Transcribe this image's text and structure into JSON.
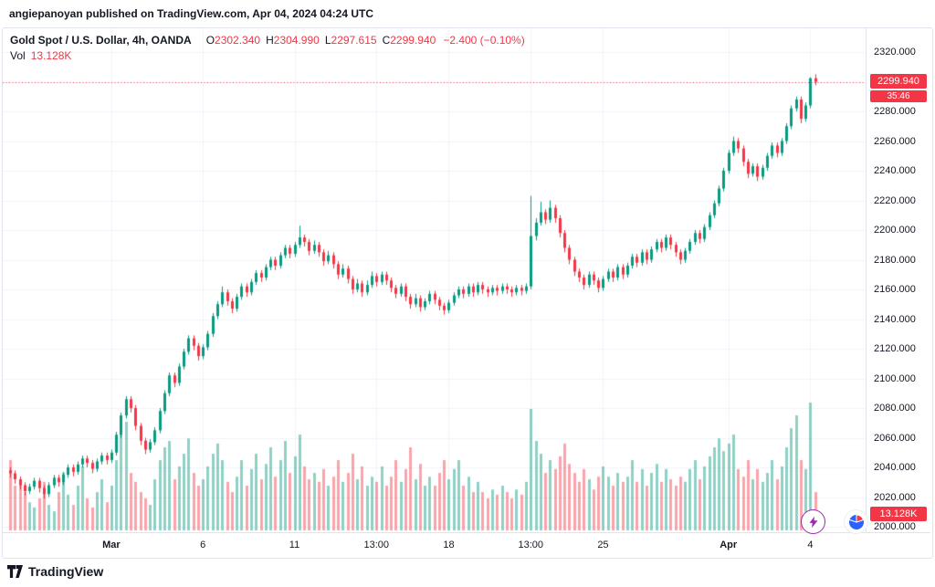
{
  "header": {
    "attribution": "angiepanoyan published on TradingView.com, Apr 04, 2024 04:24 UTC"
  },
  "legend": {
    "symbol": "Gold Spot / U.S. Dollar, 4h, OANDA",
    "ohlc": [
      {
        "label": "O",
        "value": "2302.340"
      },
      {
        "label": "H",
        "value": "2304.990"
      },
      {
        "label": "L",
        "value": "2297.615"
      },
      {
        "label": "C",
        "value": "2299.940"
      }
    ],
    "change": "−2.400 (−0.10%)",
    "vol_label": "Vol",
    "vol_value": "13.128K"
  },
  "badges": {
    "price": "2299.940",
    "countdown": "35:46",
    "volume": "13.128K"
  },
  "price_scale": {
    "labels": [
      "2320.000",
      "2300.000",
      "2280.000",
      "2260.000",
      "2240.000",
      "2220.000",
      "2200.000",
      "2180.000",
      "2160.000",
      "2140.000",
      "2120.000",
      "2100.000",
      "2080.000",
      "2060.000",
      "2040.000",
      "2020.000",
      "2000.000"
    ]
  },
  "footer": {
    "brand": "TradingView"
  },
  "colors": {
    "up": "#089981",
    "down": "#f23645",
    "vol_up": "rgba(8,153,129,0.45)",
    "vol_down": "rgba(242,54,69,0.45)",
    "grid": "#f0f3fa",
    "axis_text": "#131722",
    "accent_purple": "#9c27b0",
    "accent_blue": "#2962ff"
  },
  "chart_data": {
    "type": "candlestick",
    "title": "Gold Spot / U.S. Dollar",
    "interval": "4h",
    "exchange": "OANDA",
    "current": {
      "open": 2302.34,
      "high": 2304.99,
      "low": 2297.615,
      "close": 2299.94,
      "change": -2.4,
      "change_pct": -0.1,
      "volume_label": "13.128K",
      "countdown": "35:46"
    },
    "price_line": 2299.94,
    "ylim": [
      2000,
      2320
    ],
    "y_tick_step": 20,
    "x_ticks": [
      {
        "label": "Mar",
        "idx": 21,
        "bold": true
      },
      {
        "label": "6",
        "idx": 40,
        "bold": false
      },
      {
        "label": "11",
        "idx": 59,
        "bold": false
      },
      {
        "label": "13:00",
        "idx": 76,
        "bold": false
      },
      {
        "label": "18",
        "idx": 91,
        "bold": false
      },
      {
        "label": "13:00",
        "idx": 108,
        "bold": false
      },
      {
        "label": "25",
        "idx": 123,
        "bold": false
      },
      {
        "label": "Apr",
        "idx": 149,
        "bold": true
      },
      {
        "label": "4",
        "idx": 166,
        "bold": false
      }
    ],
    "columns": [
      "open",
      "high",
      "low",
      "close",
      "volume_rel"
    ],
    "candles": [
      [
        2038,
        2040,
        2033,
        2036,
        55
      ],
      [
        2036,
        2038,
        2029,
        2032,
        35
      ],
      [
        2032,
        2034,
        2025,
        2028,
        40
      ],
      [
        2028,
        2030,
        2021,
        2024,
        30
      ],
      [
        2024,
        2029,
        2022,
        2027,
        22
      ],
      [
        2027,
        2033,
        2025,
        2031,
        18
      ],
      [
        2031,
        2033,
        2023,
        2026,
        25
      ],
      [
        2026,
        2028,
        2019,
        2022,
        38
      ],
      [
        2022,
        2030,
        2020,
        2028,
        20
      ],
      [
        2028,
        2035,
        2026,
        2033,
        15
      ],
      [
        2033,
        2035,
        2027,
        2030,
        30
      ],
      [
        2030,
        2037,
        2028,
        2035,
        45
      ],
      [
        2035,
        2042,
        2033,
        2040,
        28
      ],
      [
        2040,
        2042,
        2034,
        2037,
        20
      ],
      [
        2037,
        2044,
        2035,
        2042,
        35
      ],
      [
        2042,
        2048,
        2040,
        2046,
        50
      ],
      [
        2046,
        2048,
        2040,
        2043,
        25
      ],
      [
        2043,
        2045,
        2036,
        2039,
        18
      ],
      [
        2039,
        2046,
        2037,
        2044,
        30
      ],
      [
        2044,
        2050,
        2042,
        2048,
        40
      ],
      [
        2048,
        2050,
        2042,
        2045,
        22
      ],
      [
        2045,
        2052,
        2043,
        2050,
        35
      ],
      [
        2050,
        2064,
        2048,
        2062,
        55
      ],
      [
        2062,
        2077,
        2060,
        2075,
        75
      ],
      [
        2075,
        2088,
        2073,
        2086,
        85
      ],
      [
        2086,
        2088,
        2077,
        2080,
        45
      ],
      [
        2080,
        2082,
        2065,
        2068,
        38
      ],
      [
        2068,
        2070,
        2055,
        2058,
        30
      ],
      [
        2058,
        2060,
        2049,
        2052,
        25
      ],
      [
        2052,
        2059,
        2050,
        2057,
        20
      ],
      [
        2057,
        2067,
        2055,
        2065,
        40
      ],
      [
        2065,
        2080,
        2063,
        2078,
        55
      ],
      [
        2078,
        2092,
        2076,
        2090,
        65
      ],
      [
        2090,
        2104,
        2088,
        2102,
        70
      ],
      [
        2102,
        2104,
        2094,
        2097,
        40
      ],
      [
        2097,
        2110,
        2095,
        2108,
        50
      ],
      [
        2108,
        2120,
        2106,
        2118,
        60
      ],
      [
        2118,
        2129,
        2116,
        2127,
        72
      ],
      [
        2127,
        2129,
        2119,
        2122,
        45
      ],
      [
        2122,
        2124,
        2112,
        2115,
        35
      ],
      [
        2115,
        2123,
        2113,
        2121,
        40
      ],
      [
        2121,
        2132,
        2119,
        2130,
        50
      ],
      [
        2130,
        2144,
        2128,
        2142,
        60
      ],
      [
        2142,
        2152,
        2140,
        2150,
        68
      ],
      [
        2150,
        2162,
        2148,
        2158,
        55
      ],
      [
        2158,
        2160,
        2149,
        2152,
        38
      ],
      [
        2152,
        2154,
        2144,
        2147,
        30
      ],
      [
        2147,
        2157,
        2145,
        2155,
        42
      ],
      [
        2155,
        2164,
        2153,
        2162,
        55
      ],
      [
        2162,
        2164,
        2155,
        2158,
        35
      ],
      [
        2158,
        2167,
        2156,
        2165,
        48
      ],
      [
        2165,
        2173,
        2163,
        2171,
        60
      ],
      [
        2171,
        2173,
        2165,
        2168,
        40
      ],
      [
        2168,
        2177,
        2166,
        2175,
        52
      ],
      [
        2175,
        2182,
        2173,
        2180,
        65
      ],
      [
        2180,
        2182,
        2173,
        2176,
        42
      ],
      [
        2176,
        2185,
        2174,
        2183,
        55
      ],
      [
        2183,
        2190,
        2181,
        2188,
        70
      ],
      [
        2188,
        2190,
        2181,
        2184,
        45
      ],
      [
        2184,
        2192,
        2182,
        2190,
        58
      ],
      [
        2190,
        2203,
        2188,
        2195,
        75
      ],
      [
        2195,
        2197,
        2189,
        2192,
        50
      ],
      [
        2192,
        2194,
        2183,
        2186,
        40
      ],
      [
        2186,
        2193,
        2184,
        2190,
        45
      ],
      [
        2190,
        2192,
        2182,
        2185,
        38
      ],
      [
        2185,
        2187,
        2176,
        2179,
        48
      ],
      [
        2179,
        2186,
        2177,
        2183,
        35
      ],
      [
        2183,
        2185,
        2174,
        2177,
        42
      ],
      [
        2177,
        2179,
        2167,
        2170,
        55
      ],
      [
        2170,
        2177,
        2168,
        2174,
        38
      ],
      [
        2174,
        2176,
        2164,
        2167,
        45
      ],
      [
        2167,
        2169,
        2157,
        2160,
        60
      ],
      [
        2160,
        2167,
        2158,
        2164,
        40
      ],
      [
        2164,
        2166,
        2155,
        2158,
        50
      ],
      [
        2158,
        2166,
        2156,
        2163,
        35
      ],
      [
        2163,
        2172,
        2161,
        2169,
        42
      ],
      [
        2169,
        2171,
        2162,
        2165,
        38
      ],
      [
        2165,
        2172,
        2163,
        2170,
        50
      ],
      [
        2170,
        2172,
        2163,
        2166,
        35
      ],
      [
        2166,
        2168,
        2158,
        2161,
        42
      ],
      [
        2161,
        2163,
        2154,
        2157,
        55
      ],
      [
        2157,
        2164,
        2155,
        2162,
        38
      ],
      [
        2162,
        2164,
        2152,
        2155,
        48
      ],
      [
        2155,
        2157,
        2147,
        2150,
        65
      ],
      [
        2150,
        2157,
        2148,
        2154,
        40
      ],
      [
        2154,
        2156,
        2145,
        2148,
        52
      ],
      [
        2148,
        2154,
        2146,
        2152,
        35
      ],
      [
        2152,
        2159,
        2150,
        2157,
        42
      ],
      [
        2157,
        2159,
        2150,
        2153,
        35
      ],
      [
        2153,
        2155,
        2146,
        2149,
        45
      ],
      [
        2149,
        2151,
        2143,
        2146,
        55
      ],
      [
        2146,
        2153,
        2144,
        2151,
        40
      ],
      [
        2151,
        2158,
        2149,
        2156,
        48
      ],
      [
        2156,
        2162,
        2154,
        2160,
        55
      ],
      [
        2160,
        2162,
        2154,
        2157,
        35
      ],
      [
        2157,
        2164,
        2155,
        2162,
        42
      ],
      [
        2162,
        2164,
        2155,
        2158,
        30
      ],
      [
        2158,
        2165,
        2156,
        2163,
        38
      ],
      [
        2163,
        2165,
        2157,
        2160,
        30
      ],
      [
        2160,
        2162,
        2155,
        2158,
        25
      ],
      [
        2158,
        2163,
        2156,
        2161,
        32
      ],
      [
        2161,
        2163,
        2156,
        2159,
        28
      ],
      [
        2159,
        2164,
        2157,
        2162,
        35
      ],
      [
        2162,
        2164,
        2157,
        2160,
        30
      ],
      [
        2160,
        2162,
        2155,
        2158,
        25
      ],
      [
        2158,
        2163,
        2156,
        2161,
        32
      ],
      [
        2161,
        2163,
        2156,
        2159,
        28
      ],
      [
        2159,
        2164,
        2157,
        2162,
        38
      ],
      [
        2162,
        2223,
        2160,
        2196,
        95
      ],
      [
        2196,
        2208,
        2193,
        2205,
        70
      ],
      [
        2205,
        2219,
        2203,
        2212,
        60
      ],
      [
        2212,
        2214,
        2204,
        2207,
        45
      ],
      [
        2207,
        2220,
        2205,
        2215,
        55
      ],
      [
        2215,
        2217,
        2205,
        2208,
        48
      ],
      [
        2208,
        2210,
        2195,
        2198,
        58
      ],
      [
        2198,
        2200,
        2185,
        2188,
        68
      ],
      [
        2188,
        2190,
        2177,
        2180,
        52
      ],
      [
        2180,
        2182,
        2169,
        2172,
        45
      ],
      [
        2172,
        2174,
        2165,
        2168,
        38
      ],
      [
        2168,
        2170,
        2160,
        2163,
        48
      ],
      [
        2163,
        2172,
        2161,
        2170,
        40
      ],
      [
        2170,
        2172,
        2163,
        2166,
        32
      ],
      [
        2166,
        2168,
        2158,
        2161,
        42
      ],
      [
        2161,
        2169,
        2159,
        2167,
        50
      ],
      [
        2167,
        2174,
        2165,
        2172,
        42
      ],
      [
        2172,
        2174,
        2165,
        2168,
        35
      ],
      [
        2168,
        2177,
        2166,
        2175,
        45
      ],
      [
        2175,
        2177,
        2167,
        2170,
        38
      ],
      [
        2170,
        2178,
        2168,
        2176,
        42
      ],
      [
        2176,
        2184,
        2174,
        2182,
        55
      ],
      [
        2182,
        2184,
        2175,
        2178,
        38
      ],
      [
        2178,
        2187,
        2176,
        2185,
        48
      ],
      [
        2185,
        2187,
        2177,
        2180,
        35
      ],
      [
        2180,
        2189,
        2178,
        2187,
        45
      ],
      [
        2187,
        2194,
        2185,
        2192,
        52
      ],
      [
        2192,
        2194,
        2185,
        2188,
        38
      ],
      [
        2188,
        2197,
        2186,
        2195,
        48
      ],
      [
        2195,
        2197,
        2187,
        2190,
        40
      ],
      [
        2190,
        2192,
        2182,
        2185,
        35
      ],
      [
        2185,
        2187,
        2177,
        2180,
        42
      ],
      [
        2180,
        2188,
        2178,
        2186,
        38
      ],
      [
        2186,
        2194,
        2184,
        2192,
        48
      ],
      [
        2192,
        2200,
        2190,
        2198,
        55
      ],
      [
        2198,
        2200,
        2191,
        2194,
        40
      ],
      [
        2194,
        2204,
        2192,
        2202,
        50
      ],
      [
        2202,
        2212,
        2200,
        2210,
        58
      ],
      [
        2210,
        2220,
        2208,
        2218,
        65
      ],
      [
        2218,
        2230,
        2216,
        2228,
        72
      ],
      [
        2228,
        2242,
        2226,
        2240,
        62
      ],
      [
        2240,
        2254,
        2238,
        2252,
        68
      ],
      [
        2252,
        2263,
        2250,
        2260,
        75
      ],
      [
        2260,
        2262,
        2252,
        2255,
        48
      ],
      [
        2255,
        2257,
        2243,
        2246,
        42
      ],
      [
        2246,
        2248,
        2235,
        2238,
        55
      ],
      [
        2238,
        2245,
        2236,
        2243,
        40
      ],
      [
        2243,
        2245,
        2233,
        2236,
        48
      ],
      [
        2236,
        2244,
        2234,
        2242,
        38
      ],
      [
        2242,
        2252,
        2240,
        2250,
        45
      ],
      [
        2250,
        2259,
        2248,
        2257,
        55
      ],
      [
        2257,
        2259,
        2249,
        2252,
        40
      ],
      [
        2252,
        2262,
        2250,
        2260,
        50
      ],
      [
        2260,
        2272,
        2258,
        2270,
        65
      ],
      [
        2270,
        2284,
        2268,
        2282,
        80
      ],
      [
        2282,
        2290,
        2280,
        2288,
        90
      ],
      [
        2288,
        2290,
        2272,
        2275,
        55
      ],
      [
        2275,
        2286,
        2273,
        2284,
        48
      ],
      [
        2284,
        2303,
        2282,
        2302.34,
        100
      ],
      [
        2302.34,
        2304.99,
        2297.615,
        2299.94,
        30
      ]
    ]
  }
}
